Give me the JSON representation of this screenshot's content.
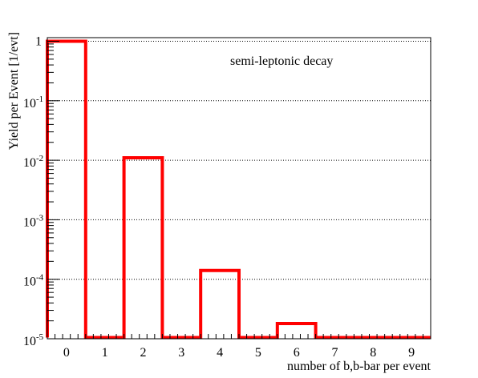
{
  "chart_data": {
    "type": "bar",
    "annotation": "semi-leptonic decay",
    "xlabel": "number of b,b-bar per event",
    "ylabel": "Yield per Event [1/evt]",
    "x_tick_labels": [
      "0",
      "1",
      "2",
      "3",
      "4",
      "5",
      "6",
      "7",
      "8",
      "9"
    ],
    "x_range": [
      -0.5,
      9.5
    ],
    "y_scale": "log",
    "ylim": [
      1e-05,
      1.15
    ],
    "y_tick_labels": [
      {
        "base": "1",
        "exp": "",
        "value": 1
      },
      {
        "base": "10",
        "exp": "-1",
        "value": 0.1
      },
      {
        "base": "10",
        "exp": "-2",
        "value": 0.01
      },
      {
        "base": "10",
        "exp": "-3",
        "value": 0.001
      },
      {
        "base": "10",
        "exp": "-4",
        "value": 0.0001
      },
      {
        "base": "10",
        "exp": "-5",
        "value": 1e-05
      }
    ],
    "x": [
      0,
      2,
      4,
      6
    ],
    "values": [
      1,
      0.011,
      0.00014,
      1.8e-05
    ],
    "bar_color": "#ff0000",
    "grid": "horizontal dotted"
  }
}
